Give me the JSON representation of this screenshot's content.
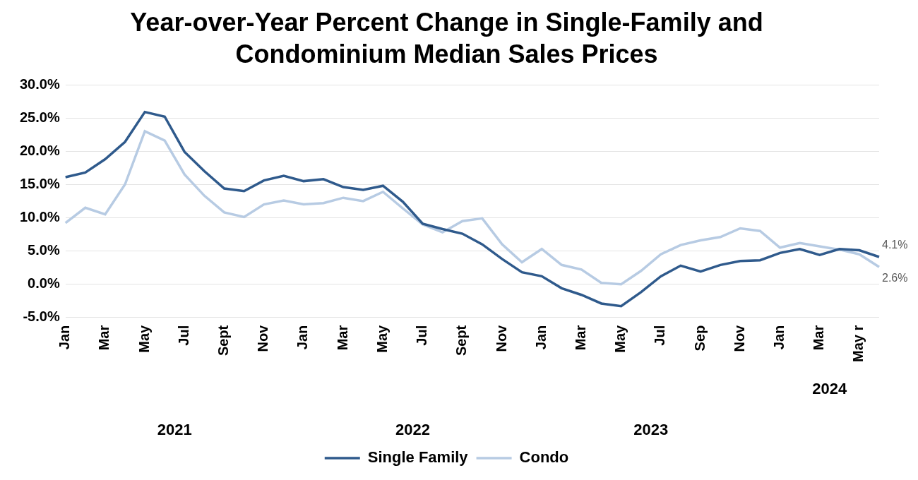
{
  "chart_data": {
    "type": "line",
    "title": [
      "Year-over-Year Percent Change in Single-Family and",
      "Condominium Median Sales Prices"
    ],
    "categories": [
      "Jan",
      null,
      "Mar",
      null,
      "May",
      null,
      "Jul",
      null,
      "Sept",
      null,
      "Nov",
      null,
      "Jan",
      null,
      "Mar",
      null,
      "May",
      null,
      "Jul",
      null,
      "Sept",
      null,
      "Nov",
      null,
      "Jan",
      null,
      "Mar",
      null,
      "May",
      null,
      "Jul",
      null,
      "Sep",
      null,
      "Nov",
      null,
      "Jan",
      null,
      "Mar",
      null,
      "May r",
      null
    ],
    "x_groups": [
      {
        "label": "2021",
        "count": 12
      },
      {
        "label": "2022",
        "count": 12
      },
      {
        "label": "2023",
        "count": 12
      },
      {
        "label": "2024",
        "count": 6
      }
    ],
    "series": [
      {
        "name": "Single Family",
        "color": "#2f5a8c",
        "marker": "none",
        "line_style": "solid",
        "values": [
          16.1,
          16.8,
          18.8,
          21.4,
          25.9,
          25.2,
          19.9,
          17.0,
          14.4,
          14.0,
          15.6,
          16.3,
          15.5,
          15.8,
          14.6,
          14.2,
          14.8,
          12.4,
          9.1,
          8.3,
          7.6,
          6.0,
          3.8,
          1.8,
          1.2,
          -0.6,
          -1.6,
          -2.9,
          -3.3,
          -1.2,
          1.2,
          2.8,
          1.9,
          2.9,
          3.5,
          3.6,
          4.7,
          5.3,
          4.4,
          5.3,
          5.1,
          4.1
        ],
        "value_labels": [
          null,
          null,
          null,
          null,
          null,
          null,
          null,
          null,
          null,
          null,
          null,
          null,
          null,
          null,
          null,
          null,
          null,
          null,
          null,
          null,
          null,
          null,
          null,
          null,
          null,
          null,
          null,
          null,
          null,
          null,
          null,
          null,
          null,
          null,
          null,
          null,
          null,
          null,
          null,
          null,
          null,
          "4.1%"
        ]
      },
      {
        "name": "Condo",
        "color": "#b7cbe3",
        "marker": "none",
        "line_style": "solid",
        "values": [
          9.2,
          11.5,
          10.5,
          15.0,
          23.0,
          21.6,
          16.5,
          13.3,
          10.8,
          10.1,
          12.0,
          12.6,
          12.0,
          12.2,
          13.0,
          12.5,
          13.9,
          11.4,
          9.0,
          7.8,
          9.5,
          9.9,
          6.0,
          3.3,
          5.3,
          2.9,
          2.2,
          0.2,
          0.0,
          2.0,
          4.5,
          5.9,
          6.6,
          7.1,
          8.4,
          8.0,
          5.5,
          6.2,
          5.7,
          5.2,
          4.5,
          2.6
        ],
        "value_labels": [
          null,
          null,
          null,
          null,
          null,
          null,
          null,
          null,
          null,
          null,
          null,
          null,
          null,
          null,
          null,
          null,
          null,
          null,
          null,
          null,
          null,
          null,
          null,
          null,
          null,
          null,
          null,
          null,
          null,
          null,
          null,
          null,
          null,
          null,
          null,
          null,
          null,
          null,
          null,
          null,
          null,
          "2.6%"
        ]
      }
    ],
    "ylim": [
      -5,
      30
    ],
    "yticks": [
      {
        "value": -5,
        "label": "-5.0%"
      },
      {
        "value": 0,
        "label": "0.0%"
      },
      {
        "value": 5,
        "label": "5.0%"
      },
      {
        "value": 10,
        "label": "10.0%"
      },
      {
        "value": 15,
        "label": "15.0%"
      },
      {
        "value": 20,
        "label": "20.0%"
      },
      {
        "value": 25,
        "label": "25.0%"
      },
      {
        "value": 30,
        "label": "30.0%"
      }
    ],
    "grid": true,
    "legend": "bottom",
    "data_labels": true
  }
}
